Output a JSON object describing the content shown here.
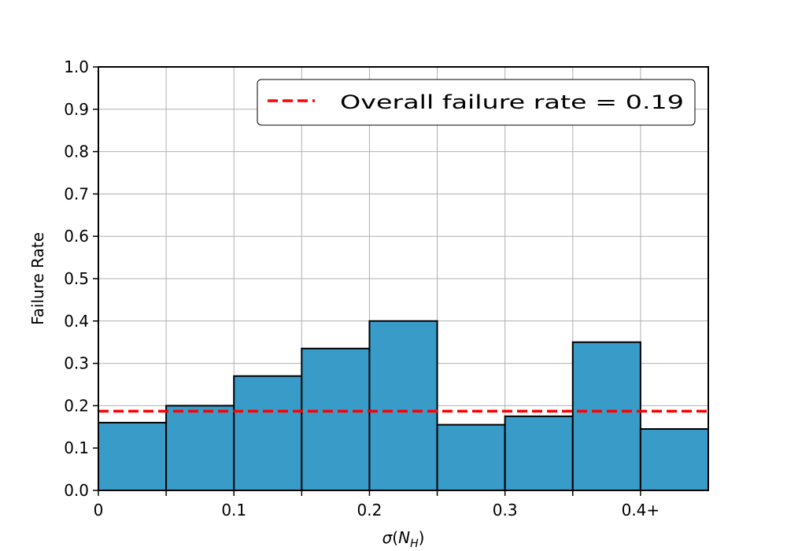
{
  "chart_data": {
    "type": "bar",
    "xlabel": "σ(N_H)",
    "ylabel": "Failure Rate",
    "xlim": [
      0,
      0.45
    ],
    "ylim": [
      0,
      1.0
    ],
    "bin_edges": [
      0,
      0.05,
      0.1,
      0.15,
      0.2,
      0.25,
      0.3,
      0.35,
      0.4,
      0.45
    ],
    "values": [
      0.16,
      0.2,
      0.27,
      0.335,
      0.4,
      0.155,
      0.175,
      0.35,
      0.145
    ],
    "x_ticks": [
      {
        "value": 0,
        "label": "0"
      },
      {
        "value": 0.1,
        "label": "0.1"
      },
      {
        "value": 0.2,
        "label": "0.2"
      },
      {
        "value": 0.3,
        "label": "0.3"
      },
      {
        "value": 0.4,
        "label": "0.4+"
      }
    ],
    "x_minor_ticks": [
      0.05,
      0.15,
      0.25,
      0.35
    ],
    "y_ticks": [
      {
        "value": 0.0,
        "label": "0.0"
      },
      {
        "value": 0.1,
        "label": "0.1"
      },
      {
        "value": 0.2,
        "label": "0.2"
      },
      {
        "value": 0.3,
        "label": "0.3"
      },
      {
        "value": 0.4,
        "label": "0.4"
      },
      {
        "value": 0.5,
        "label": "0.5"
      },
      {
        "value": 0.6,
        "label": "0.6"
      },
      {
        "value": 0.7,
        "label": "0.7"
      },
      {
        "value": 0.8,
        "label": "0.8"
      },
      {
        "value": 0.9,
        "label": "0.9"
      },
      {
        "value": 1.0,
        "label": "1.0"
      }
    ],
    "reference_line": {
      "value": 0.187,
      "label": "Overall failure rate = 0.19"
    },
    "grid": true,
    "legend_position": "top-right",
    "colors": {
      "bar": "#399bc7",
      "edge": "#000000",
      "reference_line": "#ff0000",
      "grid": "#b0b0b0"
    }
  }
}
